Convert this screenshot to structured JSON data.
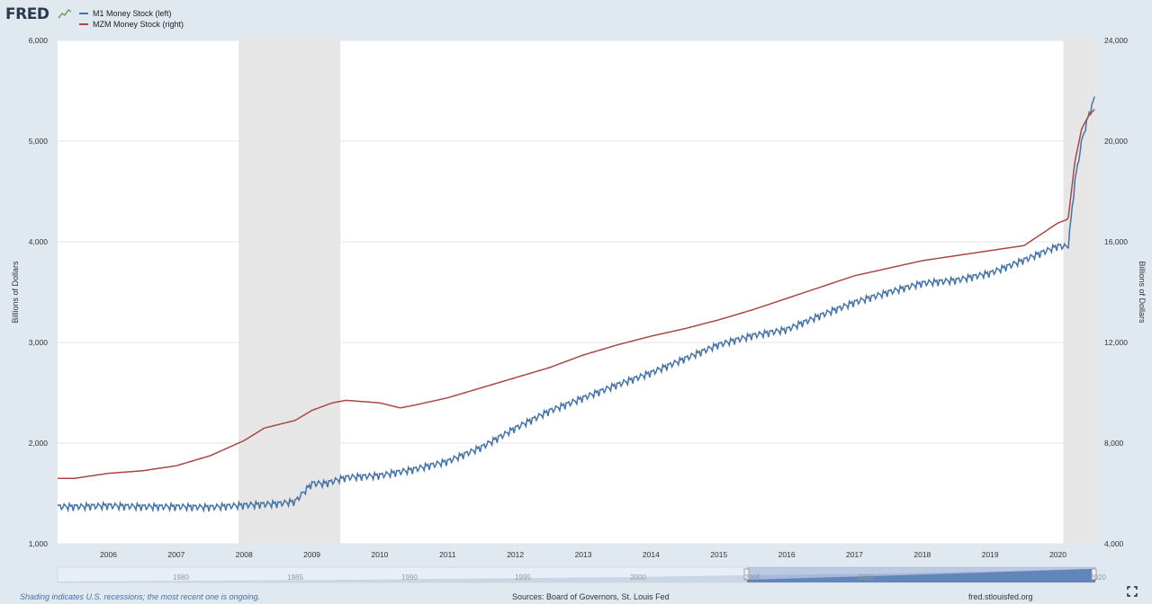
{
  "header": {
    "logo_text": "FRED",
    "logo_icon": "fred-chart-icon"
  },
  "chart_data": {
    "type": "line",
    "title": "",
    "xlabel": "",
    "ylabel_left": "Billions of Dollars",
    "ylabel_right": "Billions of Dollars",
    "xlim": [
      2005.5,
      2020.6
    ],
    "ylim_left": [
      1000,
      6000
    ],
    "ylim_right": [
      4000,
      24000
    ],
    "x_ticks": [
      "2006",
      "2007",
      "2008",
      "2009",
      "2010",
      "2011",
      "2012",
      "2013",
      "2014",
      "2015",
      "2016",
      "2017",
      "2018",
      "2019",
      "2020"
    ],
    "y_ticks_left": [
      "1,000",
      "2,000",
      "3,000",
      "4,000",
      "5,000",
      "6,000"
    ],
    "y_ticks_right": [
      "4,000",
      "8,000",
      "12,000",
      "16,000",
      "20,000",
      "24,000"
    ],
    "grid": "horizontal",
    "legend_placement": "top-left",
    "recessions": [
      [
        2007.92,
        2009.42
      ],
      [
        2020.08,
        2020.6
      ]
    ],
    "series": [
      {
        "name": "M1 Money Stock (left)",
        "axis": "left",
        "color": "#4572a7",
        "seasonal_amplitude": 45,
        "x": [
          2005.5,
          2006.0,
          2006.5,
          2007.0,
          2007.5,
          2008.0,
          2008.5,
          2008.75,
          2009.0,
          2009.2,
          2009.5,
          2010.0,
          2010.5,
          2011.0,
          2011.5,
          2012.0,
          2012.5,
          2013.0,
          2013.5,
          2014.0,
          2014.5,
          2015.0,
          2015.5,
          2016.0,
          2016.5,
          2017.0,
          2017.5,
          2018.0,
          2018.5,
          2019.0,
          2019.5,
          2020.0,
          2020.15,
          2020.25,
          2020.35,
          2020.45,
          2020.55
        ],
        "y": [
          1370,
          1380,
          1370,
          1370,
          1365,
          1385,
          1400,
          1420,
          1600,
          1600,
          1660,
          1680,
          1740,
          1820,
          1960,
          2150,
          2320,
          2450,
          2580,
          2700,
          2840,
          2980,
          3070,
          3130,
          3270,
          3400,
          3500,
          3590,
          3620,
          3690,
          3820,
          3960,
          3950,
          4600,
          5000,
          5250,
          5450
        ]
      },
      {
        "name": "MZM Money Stock (right)",
        "axis": "right",
        "color": "#aa4643",
        "x": [
          2005.5,
          2006.0,
          2006.5,
          2007.0,
          2007.5,
          2008.0,
          2008.3,
          2008.75,
          2009.0,
          2009.3,
          2009.5,
          2010.0,
          2010.3,
          2010.5,
          2011.0,
          2011.5,
          2012.0,
          2012.5,
          2013.0,
          2013.5,
          2014.0,
          2014.5,
          2015.0,
          2015.5,
          2016.0,
          2016.5,
          2017.0,
          2017.5,
          2018.0,
          2018.5,
          2019.0,
          2019.5,
          2020.0,
          2020.15,
          2020.25,
          2020.35,
          2020.45,
          2020.55
        ],
        "y": [
          6600,
          6800,
          6900,
          7100,
          7500,
          8100,
          8600,
          8900,
          9300,
          9600,
          9700,
          9600,
          9400,
          9500,
          9800,
          10200,
          10600,
          11000,
          11500,
          11900,
          12250,
          12550,
          12900,
          13300,
          13750,
          14200,
          14650,
          14950,
          15250,
          15450,
          15650,
          15850,
          16750,
          16900,
          19200,
          20500,
          21000,
          21300
        ]
      }
    ]
  },
  "navigator": {
    "labels": [
      "1980",
      "1985",
      "1990",
      "1995",
      "2000",
      "2005",
      "2010",
      "2020"
    ]
  },
  "footer": {
    "recession_note": "Shading indicates U.S. recessions; the most recent one is ongoing.",
    "sources": "Sources: Board of Governors, St. Louis Fed",
    "site": "fred.stlouisfed.org"
  },
  "colors": {
    "background": "#e1e9f0",
    "plot": "#ffffff",
    "recession": "#e6e6e6",
    "m1": "#4572a7",
    "mzm": "#aa4643"
  }
}
